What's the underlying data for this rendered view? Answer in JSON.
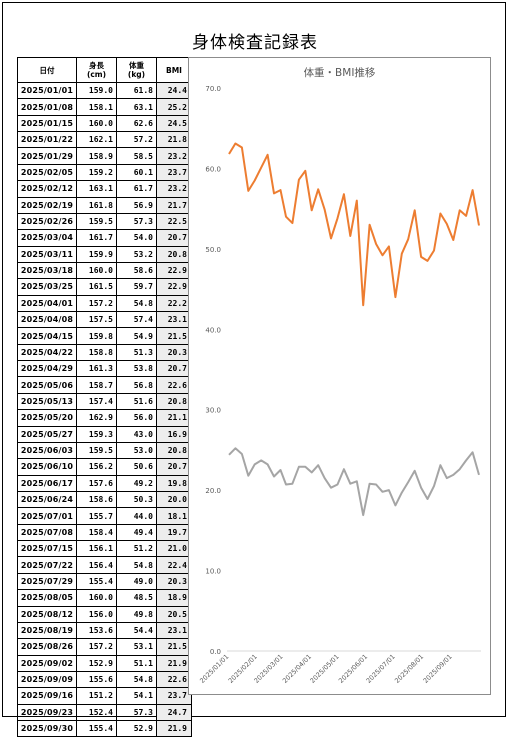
{
  "title": "身体検査記録表",
  "table": {
    "headers": [
      "日付",
      "身長\n(cm)",
      "体重\n(kg)",
      "BMI"
    ],
    "rows": [
      [
        "2025/01/01",
        "159.0",
        "61.8",
        "24.4"
      ],
      [
        "2025/01/08",
        "158.1",
        "63.1",
        "25.2"
      ],
      [
        "2025/01/15",
        "160.0",
        "62.6",
        "24.5"
      ],
      [
        "2025/01/22",
        "162.1",
        "57.2",
        "21.8"
      ],
      [
        "2025/01/29",
        "158.9",
        "58.5",
        "23.2"
      ],
      [
        "2025/02/05",
        "159.2",
        "60.1",
        "23.7"
      ],
      [
        "2025/02/12",
        "163.1",
        "61.7",
        "23.2"
      ],
      [
        "2025/02/19",
        "161.8",
        "56.9",
        "21.7"
      ],
      [
        "2025/02/26",
        "159.5",
        "57.3",
        "22.5"
      ],
      [
        "2025/03/04",
        "161.7",
        "54.0",
        "20.7"
      ],
      [
        "2025/03/11",
        "159.9",
        "53.2",
        "20.8"
      ],
      [
        "2025/03/18",
        "160.0",
        "58.6",
        "22.9"
      ],
      [
        "2025/03/25",
        "161.5",
        "59.7",
        "22.9"
      ],
      [
        "2025/04/01",
        "157.2",
        "54.8",
        "22.2"
      ],
      [
        "2025/04/08",
        "157.5",
        "57.4",
        "23.1"
      ],
      [
        "2025/04/15",
        "159.8",
        "54.9",
        "21.5"
      ],
      [
        "2025/04/22",
        "158.8",
        "51.3",
        "20.3"
      ],
      [
        "2025/04/29",
        "161.3",
        "53.8",
        "20.7"
      ],
      [
        "2025/05/06",
        "158.7",
        "56.8",
        "22.6"
      ],
      [
        "2025/05/13",
        "157.4",
        "51.6",
        "20.8"
      ],
      [
        "2025/05/20",
        "162.9",
        "56.0",
        "21.1"
      ],
      [
        "2025/05/27",
        "159.3",
        "43.0",
        "16.9"
      ],
      [
        "2025/06/03",
        "159.5",
        "53.0",
        "20.8"
      ],
      [
        "2025/06/10",
        "156.2",
        "50.6",
        "20.7"
      ],
      [
        "2025/06/17",
        "157.6",
        "49.2",
        "19.8"
      ],
      [
        "2025/06/24",
        "158.6",
        "50.3",
        "20.0"
      ],
      [
        "2025/07/01",
        "155.7",
        "44.0",
        "18.1"
      ],
      [
        "2025/07/08",
        "158.4",
        "49.4",
        "19.7"
      ],
      [
        "2025/07/15",
        "156.1",
        "51.2",
        "21.0"
      ],
      [
        "2025/07/22",
        "156.4",
        "54.8",
        "22.4"
      ],
      [
        "2025/07/29",
        "155.4",
        "49.0",
        "20.3"
      ],
      [
        "2025/08/05",
        "160.0",
        "48.5",
        "18.9"
      ],
      [
        "2025/08/12",
        "156.0",
        "49.8",
        "20.5"
      ],
      [
        "2025/08/19",
        "153.6",
        "54.4",
        "23.1"
      ],
      [
        "2025/08/26",
        "157.2",
        "53.1",
        "21.5"
      ],
      [
        "2025/09/02",
        "152.9",
        "51.1",
        "21.9"
      ],
      [
        "2025/09/09",
        "155.6",
        "54.8",
        "22.6"
      ],
      [
        "2025/09/16",
        "151.2",
        "54.1",
        "23.7"
      ],
      [
        "2025/09/23",
        "152.4",
        "57.3",
        "24.7"
      ],
      [
        "2025/09/30",
        "155.4",
        "52.9",
        "21.9"
      ]
    ]
  },
  "chart_data": {
    "type": "line",
    "title": "体重・BMI推移",
    "xlabel": "",
    "ylabel": "",
    "ylim": [
      0,
      70
    ],
    "y_ticks": [
      "0.0",
      "10.0",
      "20.0",
      "30.0",
      "40.0",
      "50.0",
      "60.0",
      "70.0"
    ],
    "x_tick_labels": [
      "2025/01/01",
      "2025/02/01",
      "2025/03/01",
      "2025/04/01",
      "2025/05/01",
      "2025/06/01",
      "2025/07/01",
      "2025/08/01",
      "2025/09/01"
    ],
    "x_ticks": [
      "2025-01-01",
      "2025-02-01",
      "2025-03-01",
      "2025-04-01",
      "2025-05-01",
      "2025-06-01",
      "2025-07-01",
      "2025-08-01",
      "2025-09-01"
    ],
    "x": [
      "2025-01-01",
      "2025-01-08",
      "2025-01-15",
      "2025-01-22",
      "2025-01-29",
      "2025-02-05",
      "2025-02-12",
      "2025-02-19",
      "2025-02-26",
      "2025-03-04",
      "2025-03-11",
      "2025-03-18",
      "2025-03-25",
      "2025-04-01",
      "2025-04-08",
      "2025-04-15",
      "2025-04-22",
      "2025-04-29",
      "2025-05-06",
      "2025-05-13",
      "2025-05-20",
      "2025-05-27",
      "2025-06-03",
      "2025-06-10",
      "2025-06-17",
      "2025-06-24",
      "2025-07-01",
      "2025-07-08",
      "2025-07-15",
      "2025-07-22",
      "2025-07-29",
      "2025-08-05",
      "2025-08-12",
      "2025-08-19",
      "2025-08-26",
      "2025-09-02",
      "2025-09-09",
      "2025-09-16",
      "2025-09-23",
      "2025-09-30"
    ],
    "series": [
      {
        "color": "#ED7D31",
        "values": [
          61.8,
          63.1,
          62.6,
          57.2,
          58.5,
          60.1,
          61.7,
          56.9,
          57.3,
          54.0,
          53.2,
          58.6,
          59.7,
          54.8,
          57.4,
          54.9,
          51.3,
          53.8,
          56.8,
          51.6,
          56.0,
          43.0,
          53.0,
          50.6,
          49.2,
          50.3,
          44.0,
          49.4,
          51.2,
          54.8,
          49.0,
          48.5,
          49.8,
          54.4,
          53.1,
          51.1,
          54.8,
          54.1,
          57.3,
          52.9
        ]
      },
      {
        "color": "#A5A5A5",
        "values": [
          24.4,
          25.2,
          24.5,
          21.8,
          23.2,
          23.7,
          23.2,
          21.7,
          22.5,
          20.7,
          20.8,
          22.9,
          22.9,
          22.2,
          23.1,
          21.5,
          20.3,
          20.7,
          22.6,
          20.8,
          21.1,
          16.9,
          20.8,
          20.7,
          19.8,
          20.0,
          18.1,
          19.7,
          21.0,
          22.4,
          20.3,
          18.9,
          20.5,
          23.1,
          21.5,
          21.9,
          22.6,
          23.7,
          24.7,
          21.9
        ]
      }
    ],
    "grid": false,
    "legend": "none"
  }
}
